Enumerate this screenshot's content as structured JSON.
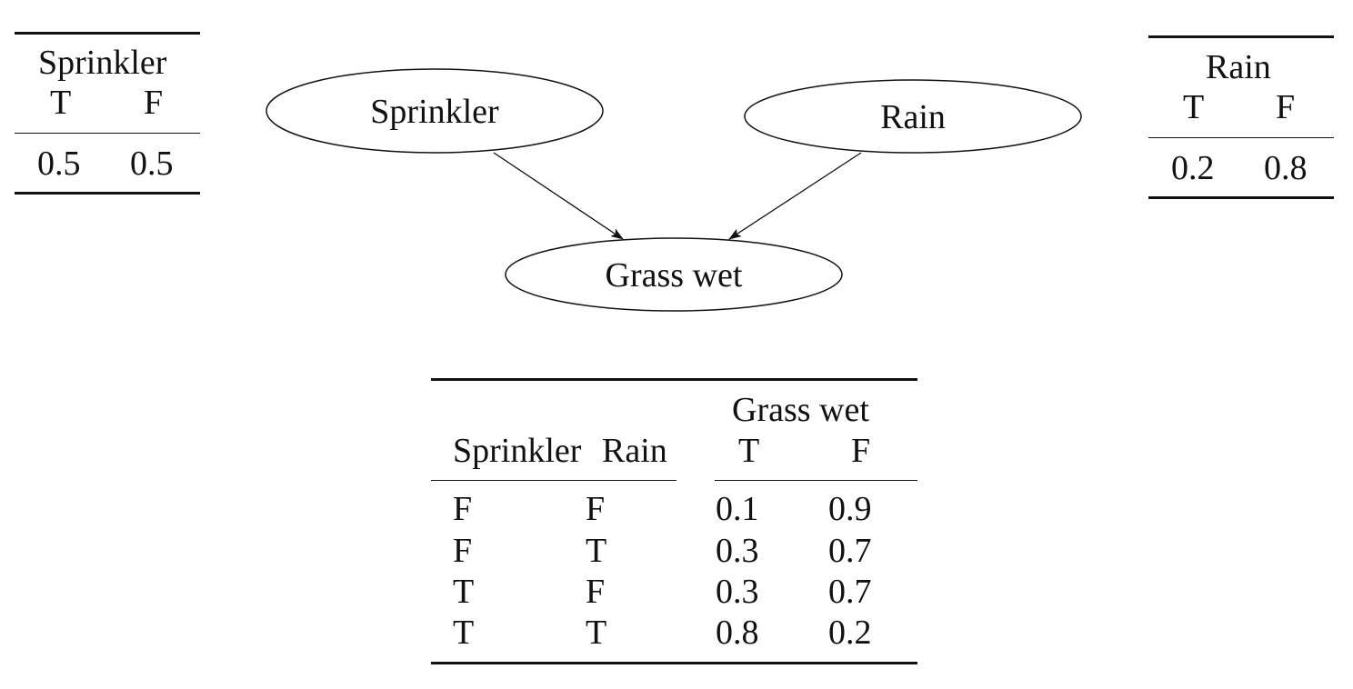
{
  "sprinkler_table": {
    "title": "Sprinkler",
    "headers": [
      "T",
      "F"
    ],
    "values": [
      "0.5",
      "0.5"
    ]
  },
  "rain_table": {
    "title": "Rain",
    "headers": [
      "T",
      "F"
    ],
    "values": [
      "0.2",
      "0.8"
    ]
  },
  "graph": {
    "nodes": {
      "sprinkler": "Sprinkler",
      "rain": "Rain",
      "grass": "Grass wet"
    },
    "edges": [
      {
        "from": "sprinkler",
        "to": "grass"
      },
      {
        "from": "rain",
        "to": "grass"
      }
    ]
  },
  "grass_table": {
    "col_sprinkler": "Sprinkler",
    "col_rain": "Rain",
    "group_title": "Grass wet",
    "headers": [
      "T",
      "F"
    ],
    "rows": [
      [
        "F",
        "F",
        "0.1",
        "0.9"
      ],
      [
        "F",
        "T",
        "0.3",
        "0.7"
      ],
      [
        "T",
        "F",
        "0.3",
        "0.7"
      ],
      [
        "T",
        "T",
        "0.8",
        "0.2"
      ]
    ]
  }
}
